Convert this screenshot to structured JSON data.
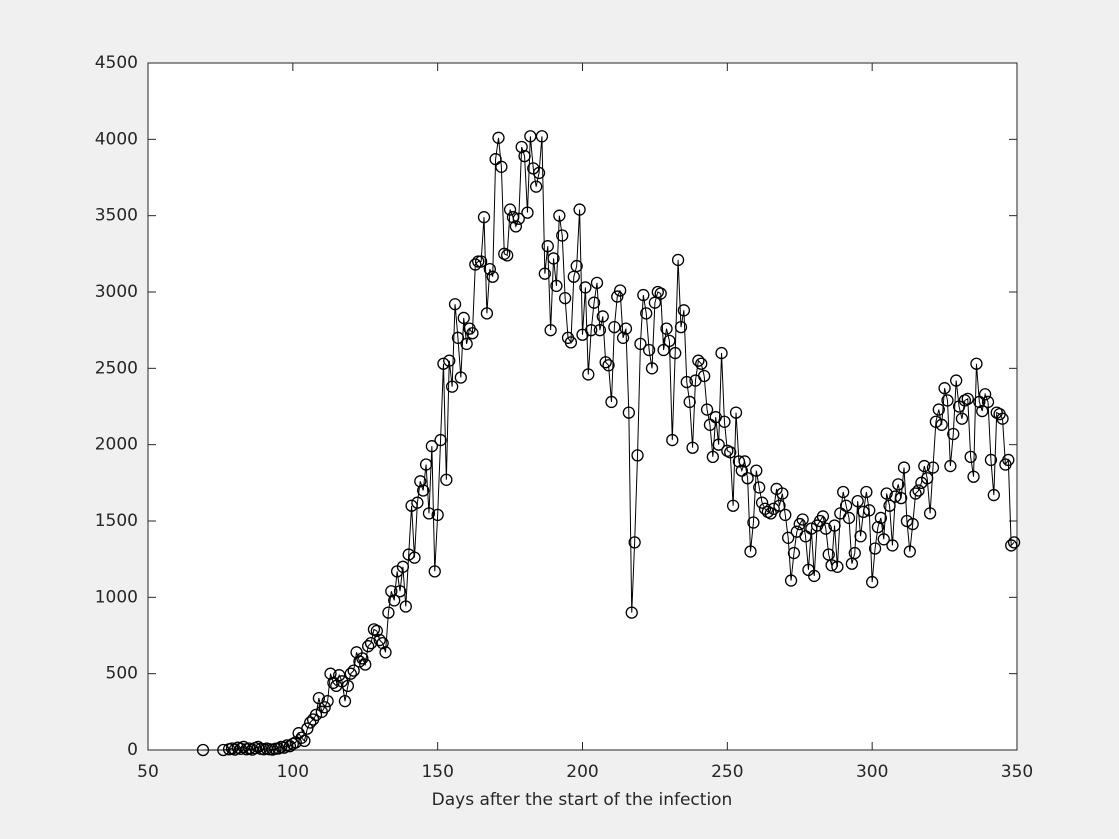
{
  "chart_data": {
    "type": "line",
    "xlabel": "Days after the start of the infection",
    "color": "#000000",
    "marker": "circle",
    "x": [
      69,
      76,
      78,
      79,
      80,
      81,
      82,
      83,
      84,
      85,
      86,
      87,
      88,
      89,
      90,
      91,
      92,
      93,
      94,
      95,
      96,
      97,
      98,
      99,
      100,
      101,
      102,
      103,
      104,
      105,
      106,
      107,
      108,
      109,
      110,
      111,
      112,
      113,
      114,
      115,
      116,
      117,
      118,
      119,
      120,
      121,
      122,
      123,
      124,
      125,
      126,
      127,
      128,
      129,
      130,
      131,
      132,
      133,
      134,
      135,
      136,
      137,
      138,
      139,
      140,
      141,
      142,
      143,
      144,
      145,
      146,
      147,
      148,
      149,
      150,
      151,
      152,
      153,
      154,
      155,
      156,
      157,
      158,
      159,
      160,
      161,
      162,
      163,
      164,
      165,
      166,
      167,
      168,
      169,
      170,
      171,
      172,
      173,
      174,
      175,
      176,
      177,
      178,
      179,
      180,
      181,
      182,
      183,
      184,
      185,
      186,
      187,
      188,
      189,
      190,
      191,
      192,
      193,
      194,
      195,
      196,
      197,
      198,
      199,
      200,
      201,
      202,
      203,
      204,
      205,
      206,
      207,
      208,
      209,
      210,
      211,
      212,
      213,
      214,
      215,
      216,
      217,
      218,
      219,
      220,
      221,
      222,
      223,
      224,
      225,
      226,
      227,
      228,
      229,
      230,
      231,
      232,
      233,
      234,
      235,
      236,
      237,
      238,
      239,
      240,
      241,
      242,
      243,
      244,
      245,
      246,
      247,
      248,
      249,
      250,
      251,
      252,
      253,
      254,
      255,
      256,
      257,
      258,
      259,
      260,
      261,
      262,
      263,
      264,
      265,
      266,
      267,
      268,
      269,
      270,
      271,
      272,
      273,
      274,
      275,
      276,
      277,
      278,
      279,
      280,
      281,
      282,
      283,
      284,
      285,
      286,
      287,
      288,
      289,
      290,
      291,
      292,
      293,
      294,
      295,
      296,
      297,
      298,
      299,
      300,
      301,
      302,
      303,
      304,
      305,
      306,
      307,
      308,
      309,
      310,
      311,
      312,
      313,
      314,
      315,
      316,
      317,
      318,
      319,
      320,
      321,
      322,
      323,
      324,
      325,
      326,
      327,
      328,
      329,
      330,
      331,
      332,
      333,
      334,
      335,
      336,
      337,
      338,
      339,
      340,
      341,
      342,
      343,
      344,
      345,
      346,
      347,
      348,
      349
    ],
    "values": [
      0,
      0,
      5,
      10,
      3,
      15,
      8,
      20,
      5,
      10,
      3,
      12,
      20,
      8,
      5,
      10,
      5,
      3,
      8,
      10,
      20,
      15,
      30,
      25,
      40,
      50,
      110,
      80,
      60,
      140,
      180,
      200,
      230,
      340,
      250,
      280,
      320,
      500,
      440,
      420,
      490,
      450,
      320,
      420,
      500,
      520,
      640,
      580,
      600,
      560,
      680,
      700,
      790,
      780,
      720,
      700,
      640,
      900,
      1040,
      980,
      1170,
      1040,
      1200,
      940,
      1280,
      1600,
      1260,
      1620,
      1760,
      1700,
      1870,
      1550,
      1990,
      1170,
      1540,
      2030,
      2530,
      1770,
      2550,
      2380,
      2920,
      2700,
      2440,
      2830,
      2660,
      2760,
      2730,
      3180,
      3200,
      3200,
      3490,
      2860,
      3150,
      3100,
      3870,
      4010,
      3820,
      3250,
      3240,
      3540,
      3490,
      3430,
      3480,
      3950,
      3890,
      3520,
      4020,
      3810,
      3690,
      3780,
      4020,
      3120,
      3300,
      2750,
      3220,
      3040,
      3500,
      3370,
      2960,
      2700,
      2670,
      3100,
      3170,
      3540,
      2720,
      3030,
      2460,
      2750,
      2930,
      3060,
      2750,
      2840,
      2540,
      2520,
      2280,
      2770,
      2970,
      3010,
      2700,
      2760,
      2210,
      900,
      1360,
      1930,
      2660,
      2980,
      2860,
      2620,
      2500,
      2930,
      3000,
      2990,
      2620,
      2760,
      2680,
      2030,
      2600,
      3210,
      2770,
      2880,
      2410,
      2280,
      1980,
      2420,
      2550,
      2530,
      2450,
      2230,
      2130,
      1920,
      2180,
      2000,
      2600,
      2150,
      1960,
      1950,
      1600,
      2210,
      1890,
      1830,
      1890,
      1780,
      1300,
      1490,
      1830,
      1720,
      1620,
      1580,
      1560,
      1550,
      1580,
      1710,
      1600,
      1680,
      1540,
      1390,
      1110,
      1290,
      1430,
      1480,
      1510,
      1400,
      1180,
      1450,
      1140,
      1470,
      1500,
      1530,
      1450,
      1280,
      1210,
      1470,
      1200,
      1550,
      1690,
      1600,
      1520,
      1220,
      1290,
      1630,
      1400,
      1560,
      1690,
      1570,
      1100,
      1320,
      1460,
      1520,
      1380,
      1680,
      1600,
      1340,
      1660,
      1740,
      1650,
      1850,
      1500,
      1300,
      1480,
      1680,
      1700,
      1750,
      1860,
      1780,
      1550,
      1850,
      2150,
      2230,
      2130,
      2370,
      2290,
      1860,
      2070,
      2420,
      2250,
      2170,
      2290,
      2300,
      1920,
      1790,
      2530,
      2280,
      2220,
      2330,
      2280,
      1900,
      1670,
      2210,
      2200,
      2170,
      1870,
      1900,
      1340,
      1360
    ],
    "xlim": [
      50,
      350
    ],
    "xticks": [
      50,
      100,
      150,
      200,
      250,
      300,
      350
    ],
    "ylim": [
      0,
      4500
    ],
    "yticks": [
      0,
      500,
      1000,
      1500,
      2000,
      2500,
      3000,
      3500,
      4000,
      4500
    ]
  }
}
